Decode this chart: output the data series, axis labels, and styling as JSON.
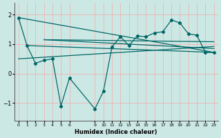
{
  "bg_color": "#cce8e4",
  "line_color": "#006666",
  "xlabel": "Humidex (Indice chaleur)",
  "xlim": [
    -0.5,
    23.5
  ],
  "ylim": [
    -1.6,
    2.4
  ],
  "yticks": [
    -1,
    0,
    1,
    2
  ],
  "xticks": [
    0,
    1,
    2,
    3,
    4,
    5,
    6,
    9,
    10,
    11,
    12,
    13,
    14,
    15,
    16,
    17,
    18,
    19,
    20,
    21,
    22,
    23
  ],
  "main_x": [
    0,
    1,
    2,
    3,
    4,
    5,
    6,
    9,
    10,
    11,
    12,
    13,
    14,
    15,
    16,
    17,
    18,
    19,
    20,
    21,
    22,
    23
  ],
  "main_y": [
    1.9,
    0.95,
    0.35,
    0.45,
    0.5,
    -1.1,
    -0.15,
    -1.2,
    -0.6,
    0.9,
    1.25,
    0.95,
    1.28,
    1.25,
    1.38,
    1.42,
    1.82,
    1.72,
    1.35,
    1.3,
    0.72,
    0.72
  ],
  "trend_lines": [
    {
      "x": [
        0,
        23
      ],
      "y": [
        1.9,
        0.72
      ]
    },
    {
      "x": [
        1,
        23
      ],
      "y": [
        0.95,
        0.72
      ]
    },
    {
      "x": [
        3,
        23
      ],
      "y": [
        1.15,
        0.85
      ]
    },
    {
      "x": [
        3,
        23
      ],
      "y": [
        1.15,
        1.08
      ]
    },
    {
      "x": [
        0,
        23
      ],
      "y": [
        0.5,
        0.92
      ]
    }
  ]
}
